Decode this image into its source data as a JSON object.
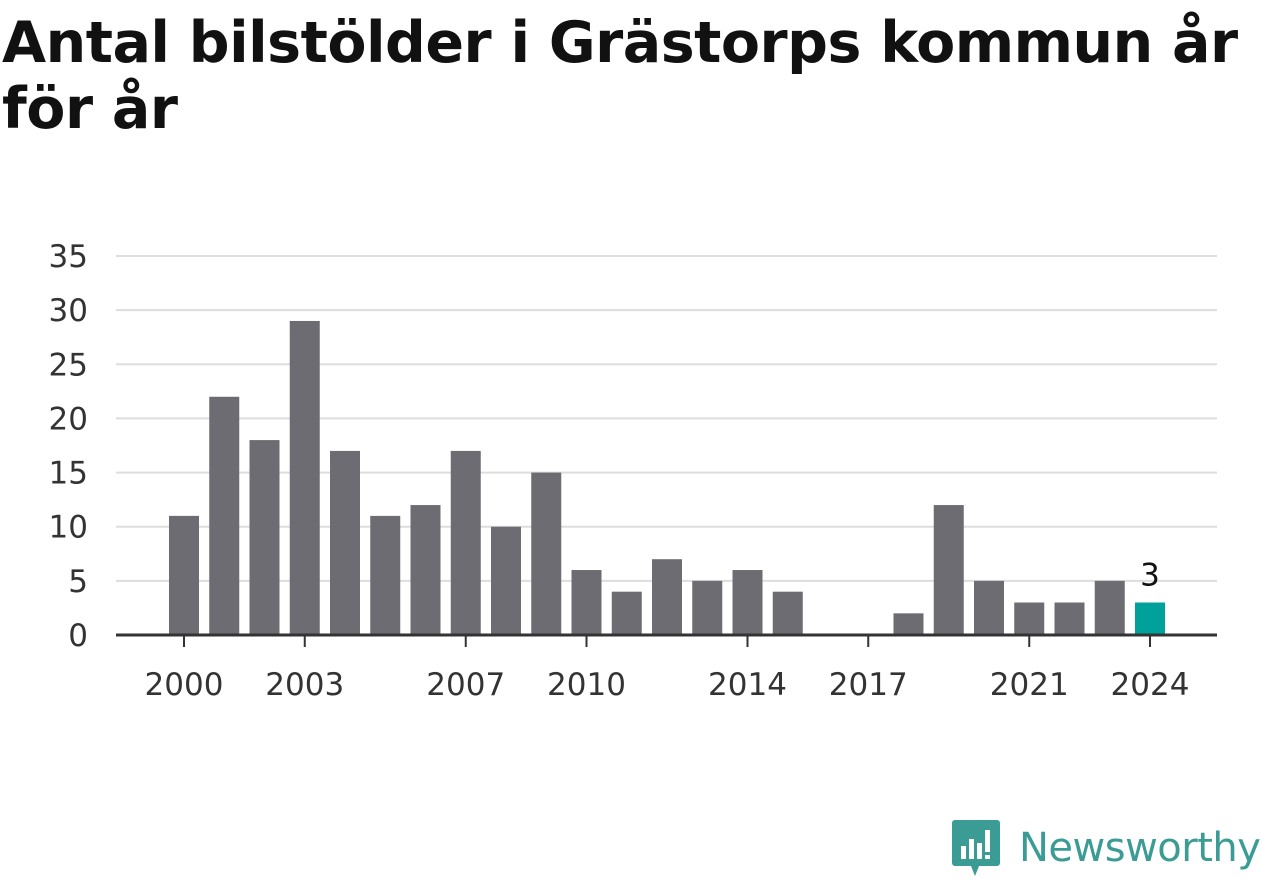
{
  "title": "Antal bilstölder i Grästorps kommun år för år",
  "brand": {
    "name": "Newsworthy",
    "icon": "newsworthy-logo-icon",
    "color": "#3a9c94"
  },
  "colors": {
    "bar": "#6d6c72",
    "highlight": "#00a19a",
    "grid": "#dddddd",
    "axis": "#333333"
  },
  "chart_data": {
    "type": "bar",
    "categories": [
      "2000",
      "2001",
      "2002",
      "2003",
      "2004",
      "2005",
      "2006",
      "2007",
      "2008",
      "2009",
      "2010",
      "2011",
      "2012",
      "2013",
      "2014",
      "2015",
      "2016",
      "2017",
      "2018",
      "2019",
      "2020",
      "2021",
      "2022",
      "2023",
      "2024"
    ],
    "values": [
      11,
      22,
      18,
      29,
      17,
      11,
      12,
      17,
      10,
      15,
      6,
      4,
      7,
      5,
      6,
      4,
      0,
      0,
      2,
      12,
      5,
      3,
      3,
      5,
      3
    ],
    "x_tick_labels": [
      "2000",
      "2003",
      "2007",
      "2010",
      "2014",
      "2017",
      "2021",
      "2024"
    ],
    "y_ticks": [
      0,
      5,
      10,
      15,
      20,
      25,
      30,
      35
    ],
    "ylim": [
      0,
      35
    ],
    "highlight": {
      "category": "2024",
      "label": "3"
    },
    "grid": true
  }
}
